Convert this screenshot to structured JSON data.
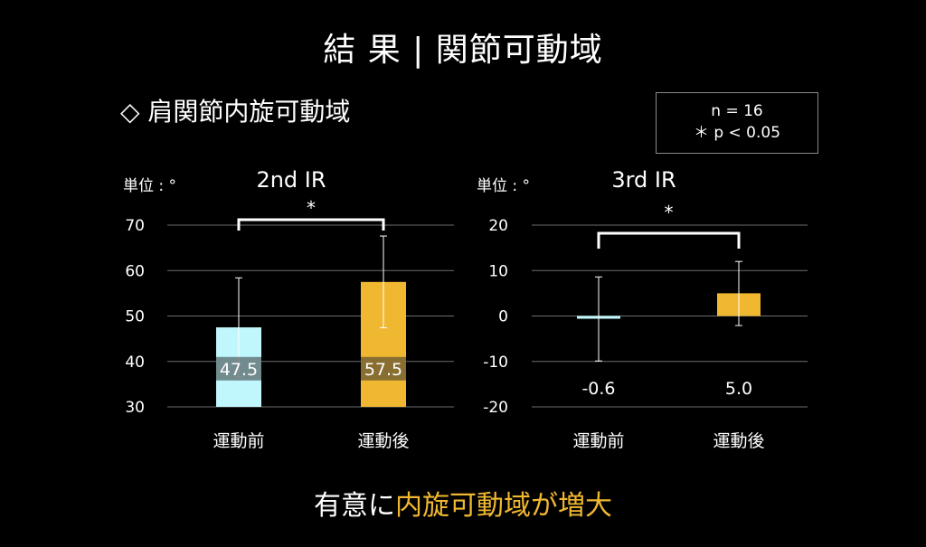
{
  "slide": {
    "title": "結 果 | 関節可動域",
    "subtitle": "◇ 肩関節内旋可動域",
    "stats": {
      "n": "n = 16",
      "p": "＊ p < 0.05"
    },
    "conclusion_plain": "有意に",
    "conclusion_highlight": "内旋可動域が増大"
  },
  "colors": {
    "pre": "#BFF7FC",
    "post": "#F0B830",
    "label_band": "#333333"
  },
  "chart_data": [
    {
      "type": "bar",
      "title": "2nd IR",
      "unit_label": "単位 : °",
      "categories": [
        "運動前",
        "運動後"
      ],
      "values": [
        47.5,
        57.5
      ],
      "value_labels": [
        "47.5",
        "57.5"
      ],
      "error_upper": [
        58.4,
        67.6
      ],
      "error_lower": [
        36.6,
        47.4
      ],
      "ylim": [
        30,
        70
      ],
      "yticks": [
        "70",
        "60",
        "50",
        "40",
        "30"
      ],
      "significance": "*",
      "grid": true
    },
    {
      "type": "bar",
      "title": "3rd IR",
      "unit_label": "単位 : °",
      "categories": [
        "運動前",
        "運動後"
      ],
      "values": [
        -0.6,
        5.0
      ],
      "value_labels": [
        "-0.6",
        "5.0"
      ],
      "error_upper": [
        8.6,
        12.0
      ],
      "error_lower": [
        -9.9,
        -2.1
      ],
      "ylim": [
        -20,
        20
      ],
      "yticks": [
        "20",
        "10",
        "0",
        "-10",
        "-20"
      ],
      "significance": "*",
      "grid": true
    }
  ]
}
